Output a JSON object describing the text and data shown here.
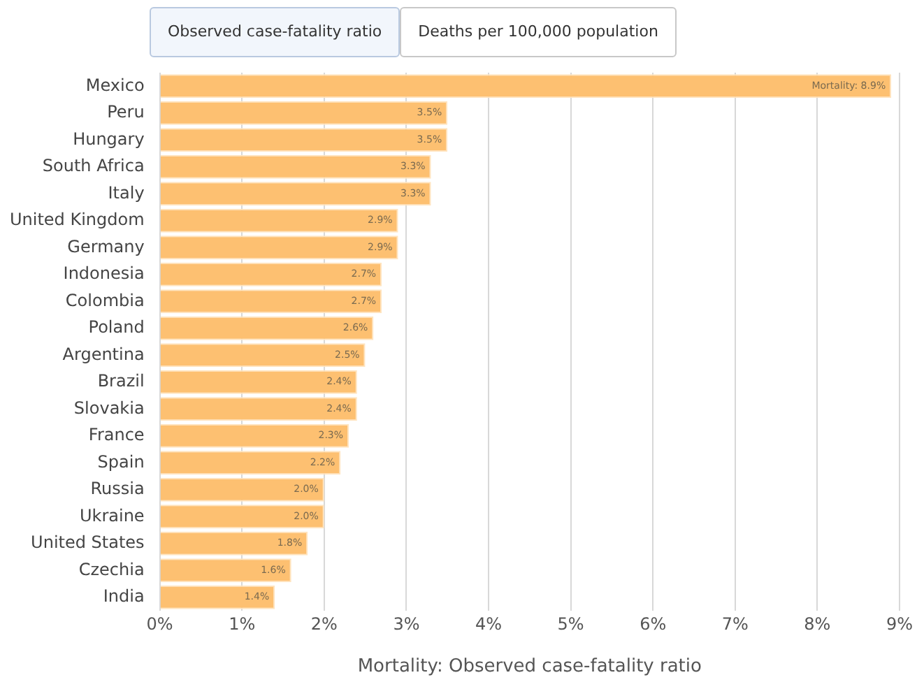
{
  "chart_data": {
    "type": "bar",
    "orientation": "horizontal",
    "xlabel": "Mortality: Observed case-fatality ratio",
    "annotations": [
      "Observed case-fatality ratio",
      "Deaths per 100,000 population"
    ],
    "categories": [
      "Mexico",
      "Peru",
      "Hungary",
      "South Africa",
      "Italy",
      "United Kingdom",
      "Germany",
      "Indonesia",
      "Colombia",
      "Poland",
      "Argentina",
      "Brazil",
      "Slovakia",
      "France",
      "Spain",
      "Russia",
      "Ukraine",
      "United States",
      "Czechia",
      "India"
    ],
    "values": [
      8.9,
      3.5,
      3.5,
      3.3,
      3.3,
      2.9,
      2.9,
      2.7,
      2.7,
      2.6,
      2.5,
      2.4,
      2.4,
      2.3,
      2.2,
      2.0,
      2.0,
      1.8,
      1.6,
      1.4
    ],
    "value_labels": [
      "Mortality: 8.9%",
      "3.5%",
      "3.5%",
      "3.3%",
      "3.3%",
      "2.9%",
      "2.9%",
      "2.7%",
      "2.7%",
      "2.6%",
      "2.5%",
      "2.4%",
      "2.4%",
      "2.3%",
      "2.2%",
      "2.0%",
      "2.0%",
      "1.8%",
      "1.6%",
      "1.4%"
    ],
    "color": "#fdc071",
    "xlim": [
      0,
      9
    ],
    "xticks": [
      {
        "value": 0,
        "label": "0%"
      },
      {
        "value": 1,
        "label": "1%"
      },
      {
        "value": 2,
        "label": "2%"
      },
      {
        "value": 3,
        "label": "3%"
      },
      {
        "value": 4,
        "label": "4%"
      },
      {
        "value": 5,
        "label": "5%"
      },
      {
        "value": 6,
        "label": "6%"
      },
      {
        "value": 7,
        "label": "7%"
      },
      {
        "value": 8,
        "label": "8%"
      },
      {
        "value": 9,
        "label": "9%"
      }
    ],
    "grid": "x",
    "legend": false
  }
}
